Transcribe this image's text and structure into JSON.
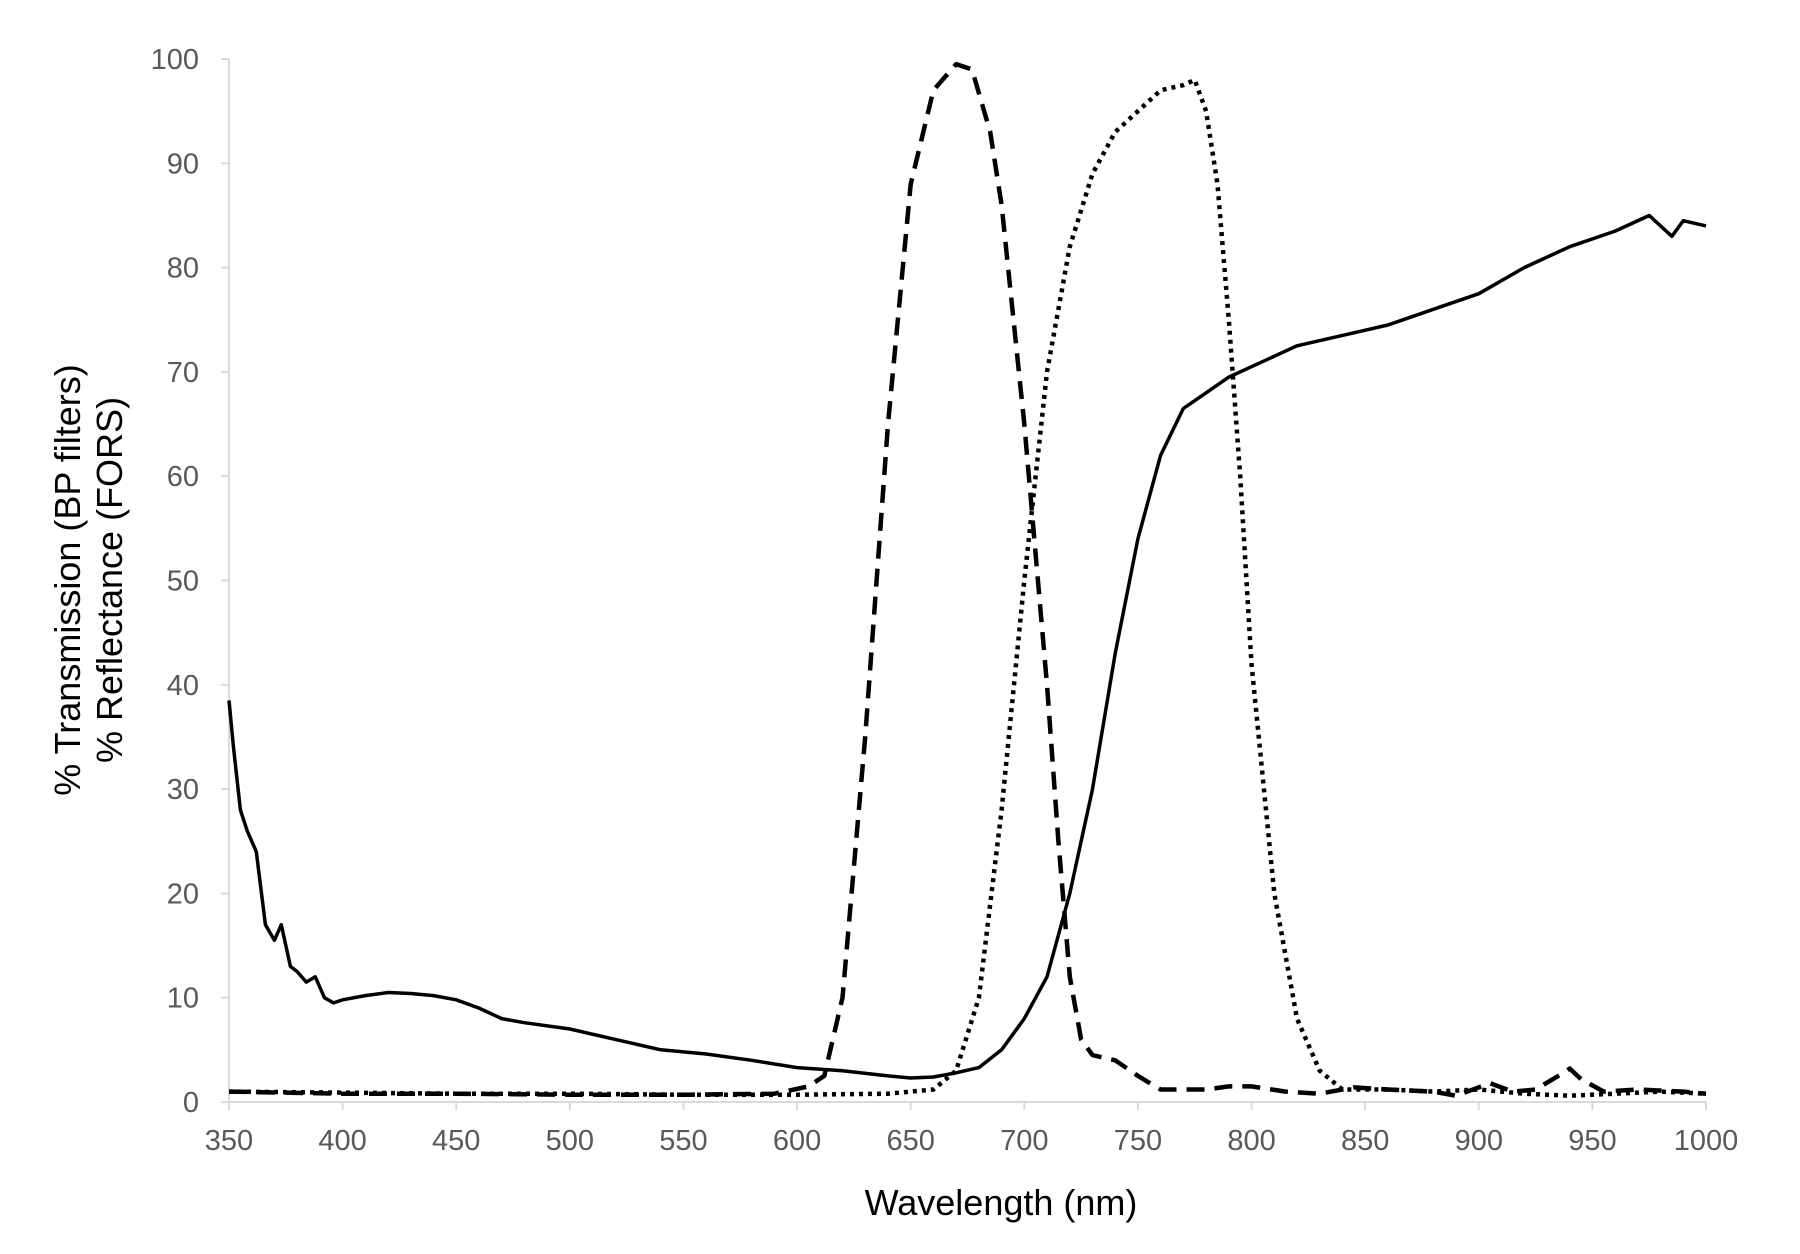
{
  "chart_data": {
    "type": "line",
    "title": "",
    "xlabel": "Wavelength (nm)",
    "ylabel_lines": [
      "% Transmission (BP filters)",
      "% Reflectance (FORS)"
    ],
    "xlim": [
      350,
      1000
    ],
    "ylim": [
      0,
      100
    ],
    "x_ticks": [
      350,
      400,
      450,
      500,
      550,
      600,
      650,
      700,
      750,
      800,
      850,
      900,
      950,
      1000
    ],
    "y_ticks": [
      0,
      10,
      20,
      30,
      40,
      50,
      60,
      70,
      80,
      90,
      100
    ],
    "grid": false,
    "legend": "none",
    "colors": {
      "series": "#000000",
      "axis": "#d9d9d9",
      "tick_text": "#595959"
    },
    "series": [
      {
        "style": "dashed",
        "points": [
          [
            350,
            1
          ],
          [
            400,
            0.8
          ],
          [
            450,
            0.8
          ],
          [
            500,
            0.7
          ],
          [
            550,
            0.7
          ],
          [
            590,
            0.8
          ],
          [
            605,
            1.5
          ],
          [
            612,
            2.5
          ],
          [
            620,
            10
          ],
          [
            630,
            35
          ],
          [
            640,
            65
          ],
          [
            650,
            88
          ],
          [
            660,
            97
          ],
          [
            670,
            99.5
          ],
          [
            677,
            99
          ],
          [
            685,
            93
          ],
          [
            690,
            86
          ],
          [
            700,
            65
          ],
          [
            710,
            40
          ],
          [
            715,
            25
          ],
          [
            720,
            12
          ],
          [
            725,
            6
          ],
          [
            730,
            4.5
          ],
          [
            740,
            4
          ],
          [
            750,
            2.5
          ],
          [
            760,
            1.2
          ],
          [
            780,
            1.2
          ],
          [
            790,
            1.5
          ],
          [
            800,
            1.5
          ],
          [
            815,
            1
          ],
          [
            830,
            0.8
          ],
          [
            845,
            1.4
          ],
          [
            860,
            1.2
          ],
          [
            880,
            1
          ],
          [
            890,
            0.6
          ],
          [
            905,
            1.8
          ],
          [
            915,
            1
          ],
          [
            925,
            1.2
          ],
          [
            935,
            2.5
          ],
          [
            940,
            3.2
          ],
          [
            945,
            2.2
          ],
          [
            955,
            1
          ],
          [
            970,
            1.2
          ],
          [
            990,
            1
          ],
          [
            1000,
            0.8
          ]
        ]
      },
      {
        "style": "dotted",
        "points": [
          [
            350,
            1
          ],
          [
            400,
            0.9
          ],
          [
            450,
            0.8
          ],
          [
            500,
            0.8
          ],
          [
            550,
            0.7
          ],
          [
            600,
            0.7
          ],
          [
            640,
            0.8
          ],
          [
            660,
            1.2
          ],
          [
            670,
            3
          ],
          [
            680,
            10
          ],
          [
            690,
            28
          ],
          [
            700,
            50
          ],
          [
            710,
            70
          ],
          [
            720,
            82
          ],
          [
            730,
            89
          ],
          [
            740,
            93
          ],
          [
            750,
            95
          ],
          [
            760,
            97
          ],
          [
            770,
            97.5
          ],
          [
            775,
            98
          ],
          [
            780,
            95
          ],
          [
            785,
            88
          ],
          [
            790,
            75
          ],
          [
            795,
            60
          ],
          [
            800,
            42
          ],
          [
            810,
            20
          ],
          [
            820,
            8
          ],
          [
            830,
            3
          ],
          [
            840,
            1.2
          ],
          [
            860,
            1.2
          ],
          [
            880,
            1
          ],
          [
            900,
            1.2
          ],
          [
            920,
            0.8
          ],
          [
            940,
            0.6
          ],
          [
            960,
            0.8
          ],
          [
            980,
            1
          ],
          [
            1000,
            0.8
          ]
        ]
      },
      {
        "style": "solid",
        "points": [
          [
            350,
            38.5
          ],
          [
            352,
            34
          ],
          [
            355,
            28
          ],
          [
            358,
            26
          ],
          [
            362,
            24
          ],
          [
            366,
            17
          ],
          [
            370,
            15.5
          ],
          [
            373,
            17
          ],
          [
            377,
            13
          ],
          [
            380,
            12.5
          ],
          [
            384,
            11.5
          ],
          [
            388,
            12
          ],
          [
            392,
            10
          ],
          [
            396,
            9.5
          ],
          [
            400,
            9.8
          ],
          [
            410,
            10.2
          ],
          [
            420,
            10.5
          ],
          [
            430,
            10.4
          ],
          [
            440,
            10.2
          ],
          [
            450,
            9.8
          ],
          [
            460,
            9
          ],
          [
            470,
            8
          ],
          [
            480,
            7.6
          ],
          [
            500,
            7
          ],
          [
            520,
            6
          ],
          [
            540,
            5
          ],
          [
            560,
            4.6
          ],
          [
            580,
            4
          ],
          [
            600,
            3.3
          ],
          [
            620,
            3
          ],
          [
            640,
            2.5
          ],
          [
            650,
            2.3
          ],
          [
            660,
            2.4
          ],
          [
            670,
            2.8
          ],
          [
            680,
            3.3
          ],
          [
            690,
            5
          ],
          [
            700,
            8
          ],
          [
            710,
            12
          ],
          [
            720,
            20
          ],
          [
            730,
            30
          ],
          [
            740,
            43
          ],
          [
            750,
            54
          ],
          [
            760,
            62
          ],
          [
            770,
            66.5
          ],
          [
            780,
            68
          ],
          [
            790,
            69.5
          ],
          [
            800,
            70.5
          ],
          [
            820,
            72.5
          ],
          [
            840,
            73.5
          ],
          [
            860,
            74.5
          ],
          [
            880,
            76
          ],
          [
            900,
            77.5
          ],
          [
            920,
            80
          ],
          [
            940,
            82
          ],
          [
            960,
            83.5
          ],
          [
            975,
            85
          ],
          [
            980,
            84
          ],
          [
            985,
            83
          ],
          [
            990,
            84.5
          ],
          [
            1000,
            84
          ]
        ]
      }
    ]
  }
}
